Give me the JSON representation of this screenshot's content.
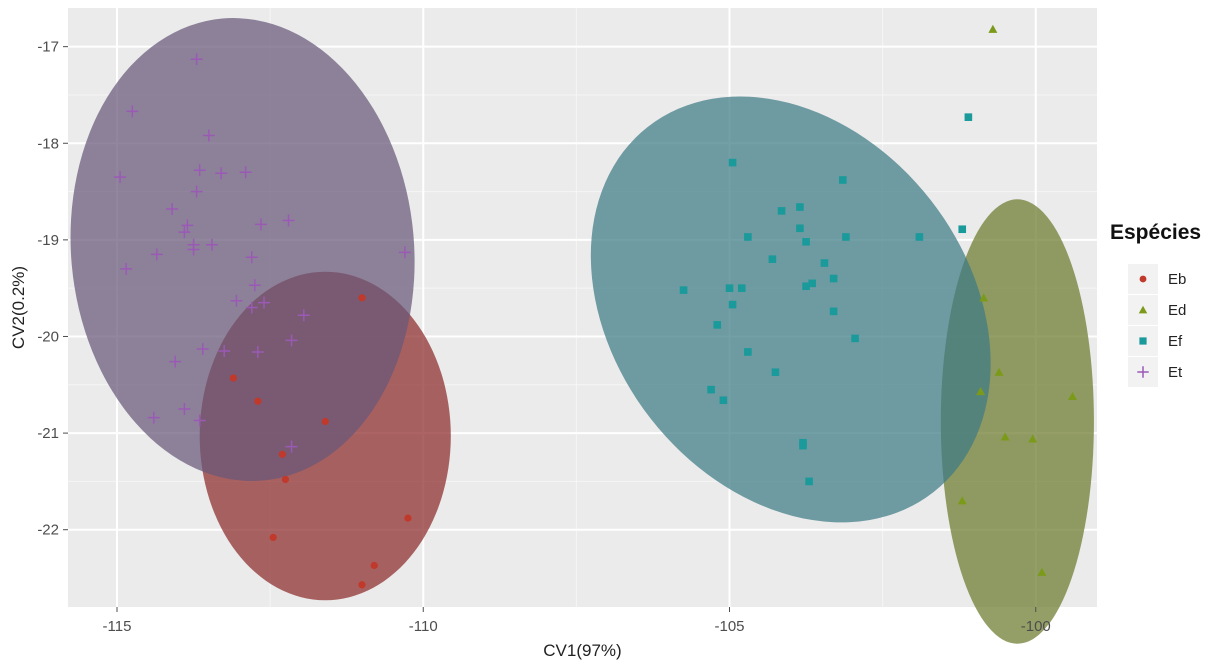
{
  "chart_data": {
    "type": "scatter",
    "title": "",
    "xlabel": "CV1(97%)",
    "ylabel": "CV2(0.2%)",
    "xlim": [
      -115.8,
      -99.0
    ],
    "ylim": [
      -22.8,
      -16.6
    ],
    "xticks": [
      -115,
      -110,
      -105,
      -100
    ],
    "yticks": [
      -17,
      -18,
      -19,
      -20,
      -21,
      -22
    ],
    "grid": true,
    "legend": {
      "title": "Espécies",
      "position": "right"
    },
    "series": [
      {
        "name": "Eb",
        "marker": "circle",
        "color": "#c0392b",
        "ellipse_fill": "#8c2a2a",
        "ellipse": {
          "cx": -111.6,
          "cy": -21.03,
          "rx": 2.05,
          "ry": 1.7
        },
        "points": [
          [
            -111.0,
            -19.6
          ],
          [
            -113.1,
            -20.43
          ],
          [
            -112.7,
            -20.67
          ],
          [
            -111.6,
            -20.88
          ],
          [
            -112.3,
            -21.22
          ],
          [
            -112.25,
            -21.48
          ],
          [
            -112.45,
            -22.08
          ],
          [
            -110.25,
            -21.88
          ],
          [
            -110.8,
            -22.37
          ],
          [
            -111.0,
            -22.57
          ]
        ]
      },
      {
        "name": "Ed",
        "marker": "triangle",
        "color": "#7c9a1a",
        "ellipse_fill": "#6b7a2c",
        "ellipse": {
          "cx": -100.3,
          "cy": -20.88,
          "rx": 1.25,
          "ry": 2.3
        },
        "points": [
          [
            -100.7,
            -16.82
          ],
          [
            -100.85,
            -19.6
          ],
          [
            -100.6,
            -20.37
          ],
          [
            -100.9,
            -20.57
          ],
          [
            -99.4,
            -20.62
          ],
          [
            -100.5,
            -21.04
          ],
          [
            -100.05,
            -21.06
          ],
          [
            -101.2,
            -21.7
          ],
          [
            -99.9,
            -22.44
          ]
        ]
      },
      {
        "name": "Ef",
        "marker": "square",
        "color": "#1a9a9a",
        "ellipse_fill": "#3d7a85",
        "ellipse": {
          "cx": -104.0,
          "cy": -19.72,
          "rx": 2.9,
          "ry": 2.4,
          "angle": -38
        },
        "points": [
          [
            -101.1,
            -17.73
          ],
          [
            -104.95,
            -18.2
          ],
          [
            -103.15,
            -18.38
          ],
          [
            -104.15,
            -18.7
          ],
          [
            -103.85,
            -18.66
          ],
          [
            -103.85,
            -18.88
          ],
          [
            -104.7,
            -18.97
          ],
          [
            -103.1,
            -18.97
          ],
          [
            -103.75,
            -19.02
          ],
          [
            -101.9,
            -18.97
          ],
          [
            -101.2,
            -18.89
          ],
          [
            -104.3,
            -19.2
          ],
          [
            -103.45,
            -19.24
          ],
          [
            -103.3,
            -19.4
          ],
          [
            -103.65,
            -19.45
          ],
          [
            -103.75,
            -19.48
          ],
          [
            -104.8,
            -19.5
          ],
          [
            -105.0,
            -19.5
          ],
          [
            -105.75,
            -19.52
          ],
          [
            -104.95,
            -19.67
          ],
          [
            -103.3,
            -19.74
          ],
          [
            -105.2,
            -19.88
          ],
          [
            -102.95,
            -20.02
          ],
          [
            -104.7,
            -20.16
          ],
          [
            -104.25,
            -20.37
          ],
          [
            -105.3,
            -20.55
          ],
          [
            -105.1,
            -20.66
          ],
          [
            -103.8,
            -21.1
          ],
          [
            -103.8,
            -21.13
          ],
          [
            -103.7,
            -21.5
          ]
        ]
      },
      {
        "name": "Et",
        "marker": "plus",
        "color": "#9b59b6",
        "ellipse_fill": "#685878",
        "ellipse": {
          "cx": -112.95,
          "cy": -19.1,
          "rx": 2.8,
          "ry": 2.4,
          "angle": -5
        },
        "points": [
          [
            -113.7,
            -17.13
          ],
          [
            -114.75,
            -17.67
          ],
          [
            -113.5,
            -17.92
          ],
          [
            -114.95,
            -18.35
          ],
          [
            -113.65,
            -18.28
          ],
          [
            -113.3,
            -18.31
          ],
          [
            -112.9,
            -18.3
          ],
          [
            -113.7,
            -18.5
          ],
          [
            -114.1,
            -18.68
          ],
          [
            -113.85,
            -18.85
          ],
          [
            -112.65,
            -18.84
          ],
          [
            -112.2,
            -18.8
          ],
          [
            -113.9,
            -18.92
          ],
          [
            -113.75,
            -19.05
          ],
          [
            -113.45,
            -19.05
          ],
          [
            -113.75,
            -19.1
          ],
          [
            -114.35,
            -19.15
          ],
          [
            -112.8,
            -19.18
          ],
          [
            -110.3,
            -19.13
          ],
          [
            -114.85,
            -19.3
          ],
          [
            -112.75,
            -19.47
          ],
          [
            -112.6,
            -19.65
          ],
          [
            -113.05,
            -19.63
          ],
          [
            -112.8,
            -19.7
          ],
          [
            -111.95,
            -19.78
          ],
          [
            -112.15,
            -20.04
          ],
          [
            -113.6,
            -20.13
          ],
          [
            -113.25,
            -20.15
          ],
          [
            -112.7,
            -20.16
          ],
          [
            -114.05,
            -20.26
          ],
          [
            -114.4,
            -20.84
          ],
          [
            -113.9,
            -20.75
          ],
          [
            -113.65,
            -20.87
          ],
          [
            -112.15,
            -21.14
          ]
        ]
      }
    ]
  }
}
